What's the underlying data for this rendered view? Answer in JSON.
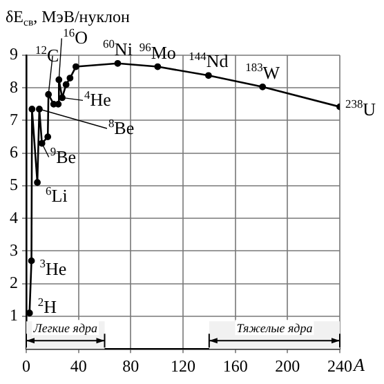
{
  "chart_data": {
    "type": "line",
    "xlabel": "A",
    "ylabel": "δE$_{св}$, МэВ/нуклон",
    "x": [
      2.5,
      4,
      4.4,
      8.5,
      10,
      12,
      16.5,
      17,
      21,
      24.5,
      25,
      27.5,
      30.5,
      33.5,
      38,
      70,
      100.6,
      139.5,
      180.9,
      240
    ],
    "values": [
      1.1,
      2.7,
      7.35,
      5.1,
      7.35,
      6.3,
      6.5,
      7.8,
      7.5,
      7.5,
      8.25,
      7.7,
      8.1,
      8.3,
      8.65,
      8.75,
      8.65,
      8.38,
      8.03,
      7.42
    ],
    "color": "#000000",
    "marker": "circle",
    "line_style": "solid",
    "grid": true,
    "legend": false,
    "xlim": [
      0,
      240
    ],
    "xticks": [
      0,
      40,
      80,
      120,
      160,
      200,
      240
    ],
    "ylim": [
      0,
      9
    ],
    "yticks": [
      1,
      2,
      3,
      4,
      5,
      6,
      7,
      8,
      9
    ],
    "annotations": [
      {
        "text": "$^{2}$H",
        "x": 2.5,
        "y": 1.1
      },
      {
        "text": "$^{3}$He",
        "x": 4,
        "y": 2.7
      },
      {
        "text": "$^{6}$Li",
        "x": 8.5,
        "y": 5.1
      },
      {
        "text": "$^{9}$Be",
        "x": 12,
        "y": 6.3
      },
      {
        "text": "$^{8}$Be",
        "x": 10,
        "y": 7.35
      },
      {
        "text": "$^{4}$He",
        "x": 27.5,
        "y": 7.7
      },
      {
        "text": "$^{12}$C",
        "x": 17,
        "y": 7.8
      },
      {
        "text": "$^{16}$O",
        "x": 25,
        "y": 8.25
      },
      {
        "text": "$^{60}$Ni",
        "x": 70,
        "y": 8.75
      },
      {
        "text": "$^{96}$Mo",
        "x": 100.6,
        "y": 8.65
      },
      {
        "text": "$^{144}$Nd",
        "x": 139.5,
        "y": 8.38
      },
      {
        "text": "$^{183}$W",
        "x": 180.9,
        "y": 8.03
      },
      {
        "text": "$^{238}$U",
        "x": 240,
        "y": 7.42
      }
    ],
    "bands": [
      {
        "axis": "x",
        "from": 0,
        "to": 60,
        "label": "Легкие ядра"
      },
      {
        "axis": "x",
        "from": 140,
        "to": 240,
        "label": "Тяжелые ядра"
      }
    ]
  }
}
